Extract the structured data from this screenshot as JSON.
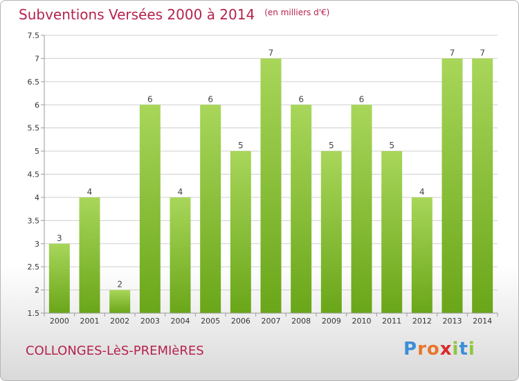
{
  "chart_data": {
    "type": "bar",
    "title": "Subventions Versées 2000 à 2014",
    "subtitle": "(en milliers d'€)",
    "categories": [
      "2000",
      "2001",
      "2002",
      "2003",
      "2004",
      "2005",
      "2006",
      "2007",
      "2008",
      "2009",
      "2010",
      "2011",
      "2012",
      "2013",
      "2014"
    ],
    "values": [
      3,
      4,
      2,
      6,
      4,
      6,
      5,
      7,
      6,
      5,
      6,
      5,
      4,
      7,
      7
    ],
    "data_labels": [
      "3",
      "4",
      "2",
      "6",
      "4",
      "6",
      "5",
      "7",
      "6",
      "5",
      "6",
      "5",
      "4",
      "7",
      "7"
    ],
    "yticks": [
      "1.5",
      "2",
      "2.5",
      "3",
      "3.5",
      "4",
      "4.5",
      "5",
      "5.5",
      "6",
      "6.5",
      "7",
      "7.5"
    ],
    "ylim": [
      1.5,
      7.5
    ],
    "xlabel": "",
    "ylabel": "",
    "grid": true,
    "bar_color": "#8cc63f"
  },
  "footer": {
    "commune": "COLLONGES-LèS-PREMIèRES",
    "brand": [
      "P",
      "r",
      "o",
      "x",
      "i",
      "t",
      "i"
    ]
  },
  "colors": {
    "title": "#b5224d",
    "bar_light": "#a8d65a",
    "bar_dark": "#6aa619"
  }
}
